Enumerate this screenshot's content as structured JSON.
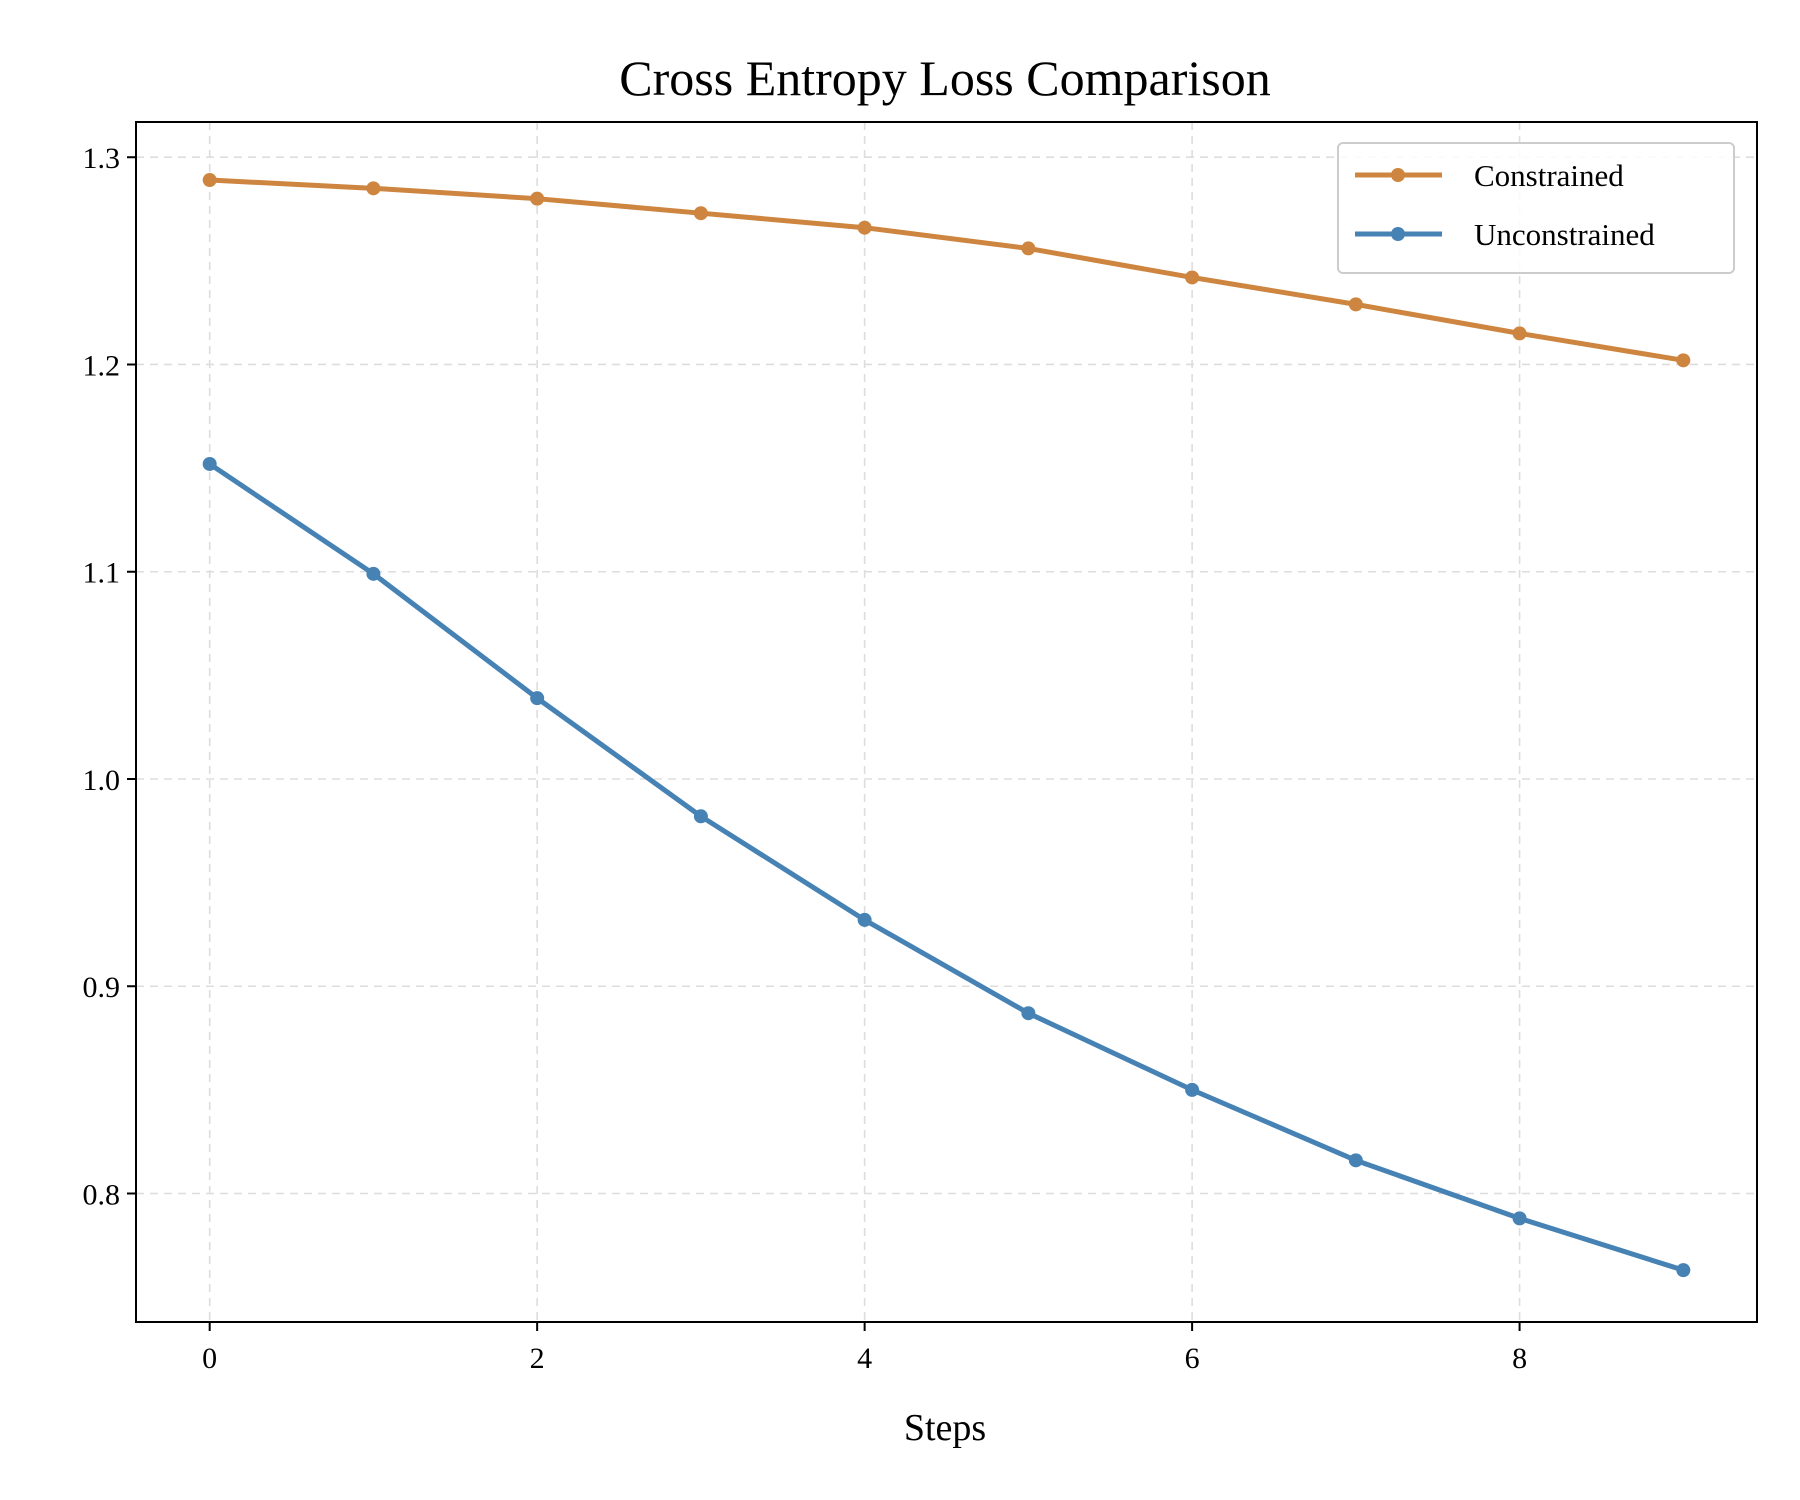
{
  "chart_data": {
    "type": "line",
    "title": "Cross Entropy Loss Comparison",
    "xlabel": "Steps",
    "ylabel": "",
    "x": [
      0,
      1,
      2,
      3,
      4,
      5,
      6,
      7,
      8,
      9
    ],
    "xlim": [
      -0.45,
      9.45
    ],
    "ylim": [
      0.738,
      1.317
    ],
    "xticks": [
      0,
      2,
      4,
      6,
      8
    ],
    "yticks": [
      0.8,
      0.9,
      1.0,
      1.1,
      1.2,
      1.3
    ],
    "xtick_labels": [
      "0",
      "2",
      "4",
      "6",
      "8"
    ],
    "ytick_labels": [
      "0.8",
      "0.9",
      "1.0",
      "1.1",
      "1.2",
      "1.3"
    ],
    "grid": true,
    "legend_position": "top-right",
    "series": [
      {
        "name": "Constrained",
        "color": "#cd853f",
        "values": [
          1.289,
          1.285,
          1.28,
          1.273,
          1.266,
          1.256,
          1.242,
          1.229,
          1.215,
          1.202
        ]
      },
      {
        "name": "Unconstrained",
        "color": "#4682b4",
        "values": [
          1.152,
          1.099,
          1.039,
          0.982,
          0.932,
          0.887,
          0.85,
          0.816,
          0.788,
          0.763
        ]
      }
    ]
  }
}
